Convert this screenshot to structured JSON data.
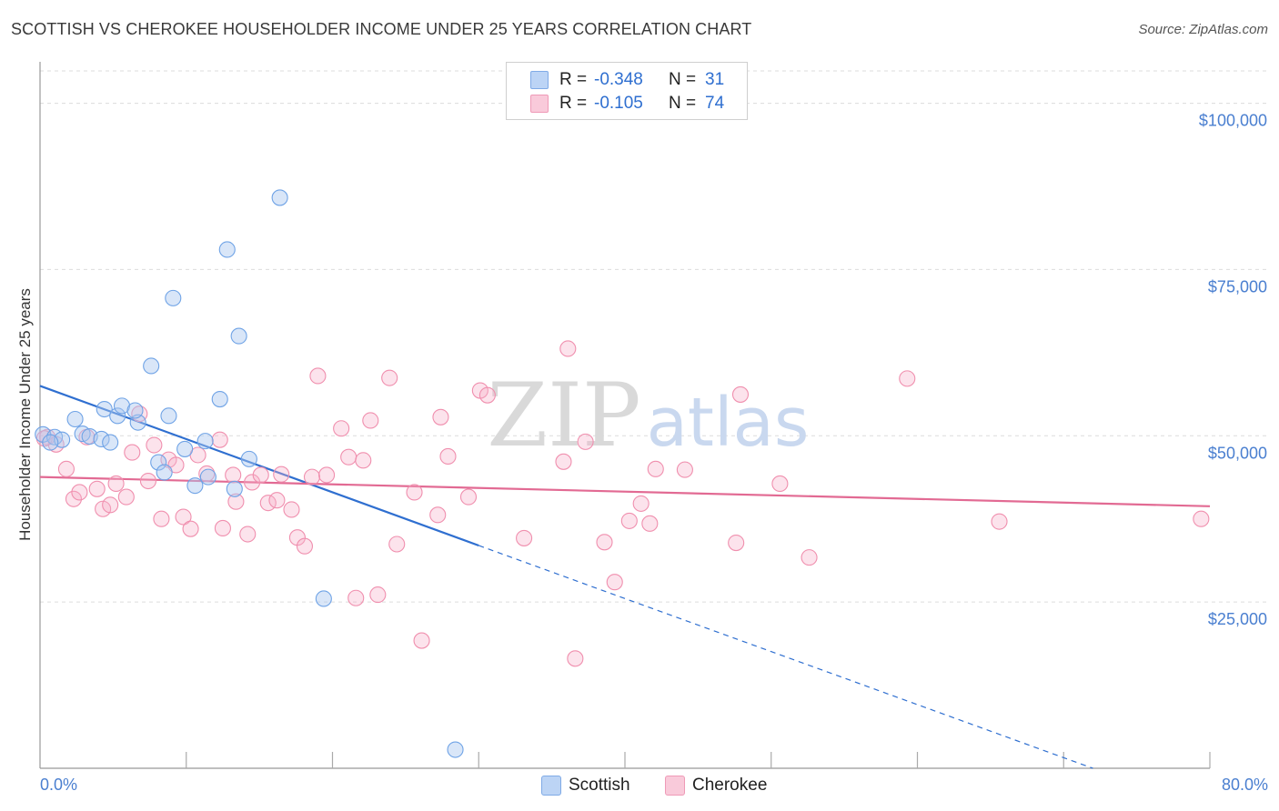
{
  "title": "SCOTTISH VS CHEROKEE HOUSEHOLDER INCOME UNDER 25 YEARS CORRELATION CHART",
  "source": "Source: ZipAtlas.com",
  "watermark": {
    "zip": "ZIP",
    "atlas": "atlas"
  },
  "legend": {
    "r_label": "R =",
    "n_label": "N =",
    "scottish": {
      "r": "-0.348",
      "n": "31",
      "color": "#6fa3e6"
    },
    "cherokee": {
      "r": "-0.105",
      "n": "74",
      "color": "#f08fae"
    }
  },
  "bottom_legend": {
    "scottish": "Scottish",
    "cherokee": "Cherokee"
  },
  "chart_data": {
    "type": "scatter",
    "ylabel": "Householder Income Under 25 years",
    "xlim": [
      0,
      80
    ],
    "ylim": [
      0,
      105000
    ],
    "x_tick_labels": [
      "0.0%",
      "80.0%"
    ],
    "y_ticks": [
      25000,
      50000,
      75000,
      100000
    ],
    "y_tick_labels": [
      "$25,000",
      "$50,000",
      "$75,000",
      "$100,000"
    ],
    "grid": true,
    "series": [
      {
        "name": "Scottish",
        "color": "#6fa3e6",
        "line_color": "#2f6fd0",
        "trend": {
          "x0": 0,
          "y0": 57500,
          "x1": 30,
          "y1": 33500,
          "x_ext": 72,
          "y_ext": 0
        },
        "points": [
          [
            0.2,
            50200
          ],
          [
            1.0,
            49800
          ],
          [
            1.5,
            49400
          ],
          [
            2.4,
            52500
          ],
          [
            2.9,
            50300
          ],
          [
            3.4,
            49900
          ],
          [
            4.2,
            49500
          ],
          [
            4.8,
            49000
          ],
          [
            4.4,
            54000
          ],
          [
            5.3,
            53000
          ],
          [
            5.6,
            54500
          ],
          [
            6.7,
            52000
          ],
          [
            6.5,
            53800
          ],
          [
            7.6,
            60500
          ],
          [
            8.8,
            53000
          ],
          [
            9.1,
            70700
          ],
          [
            8.1,
            46000
          ],
          [
            8.5,
            44500
          ],
          [
            9.9,
            48000
          ],
          [
            10.6,
            42500
          ],
          [
            11.3,
            49200
          ],
          [
            12.3,
            55500
          ],
          [
            12.8,
            78000
          ],
          [
            13.3,
            42000
          ],
          [
            13.6,
            65000
          ],
          [
            14.3,
            46500
          ],
          [
            11.5,
            43800
          ],
          [
            16.4,
            85800
          ],
          [
            19.4,
            25500
          ],
          [
            28.4,
            2800
          ],
          [
            0.7,
            49000
          ]
        ]
      },
      {
        "name": "Cherokee",
        "color": "#f08fae",
        "line_color": "#e26a93",
        "trend": {
          "x0": 0,
          "y0": 43800,
          "x1": 80,
          "y1": 39400
        },
        "points": [
          [
            0.5,
            49800
          ],
          [
            1.1,
            48700
          ],
          [
            1.8,
            45000
          ],
          [
            2.3,
            40500
          ],
          [
            2.7,
            41500
          ],
          [
            3.2,
            49800
          ],
          [
            3.9,
            42000
          ],
          [
            4.3,
            39000
          ],
          [
            4.8,
            39600
          ],
          [
            5.2,
            42800
          ],
          [
            5.9,
            40800
          ],
          [
            6.3,
            47500
          ],
          [
            6.8,
            53300
          ],
          [
            7.4,
            43200
          ],
          [
            7.8,
            48600
          ],
          [
            8.3,
            37500
          ],
          [
            8.8,
            46400
          ],
          [
            9.3,
            45600
          ],
          [
            9.8,
            37800
          ],
          [
            10.3,
            36000
          ],
          [
            10.8,
            47100
          ],
          [
            11.4,
            44300
          ],
          [
            12.3,
            49400
          ],
          [
            12.5,
            36100
          ],
          [
            13.2,
            44100
          ],
          [
            13.4,
            40100
          ],
          [
            14.2,
            35200
          ],
          [
            14.5,
            43000
          ],
          [
            15.1,
            44100
          ],
          [
            15.6,
            39900
          ],
          [
            16.2,
            40300
          ],
          [
            16.5,
            44200
          ],
          [
            17.2,
            38900
          ],
          [
            17.6,
            34700
          ],
          [
            18.1,
            33400
          ],
          [
            18.6,
            43800
          ],
          [
            19.0,
            59000
          ],
          [
            19.6,
            44100
          ],
          [
            20.6,
            51100
          ],
          [
            21.1,
            46800
          ],
          [
            21.6,
            25600
          ],
          [
            22.1,
            46300
          ],
          [
            22.6,
            52300
          ],
          [
            23.1,
            26100
          ],
          [
            23.9,
            58700
          ],
          [
            24.4,
            33700
          ],
          [
            25.6,
            41500
          ],
          [
            26.1,
            19200
          ],
          [
            27.2,
            38100
          ],
          [
            27.4,
            52800
          ],
          [
            27.9,
            46900
          ],
          [
            29.3,
            40800
          ],
          [
            30.1,
            56800
          ],
          [
            30.6,
            56100
          ],
          [
            33.1,
            34600
          ],
          [
            35.8,
            46100
          ],
          [
            36.1,
            63100
          ],
          [
            36.6,
            16500
          ],
          [
            37.3,
            49100
          ],
          [
            38.6,
            34000
          ],
          [
            39.3,
            28000
          ],
          [
            40.3,
            37200
          ],
          [
            41.1,
            39800
          ],
          [
            41.7,
            36800
          ],
          [
            42.1,
            45000
          ],
          [
            44.1,
            44900
          ],
          [
            47.6,
            33900
          ],
          [
            47.9,
            56200
          ],
          [
            50.6,
            42800
          ],
          [
            52.6,
            31700
          ],
          [
            59.3,
            58600
          ],
          [
            65.6,
            37100
          ],
          [
            79.4,
            37500
          ],
          [
            0.3,
            49600
          ]
        ]
      }
    ]
  }
}
